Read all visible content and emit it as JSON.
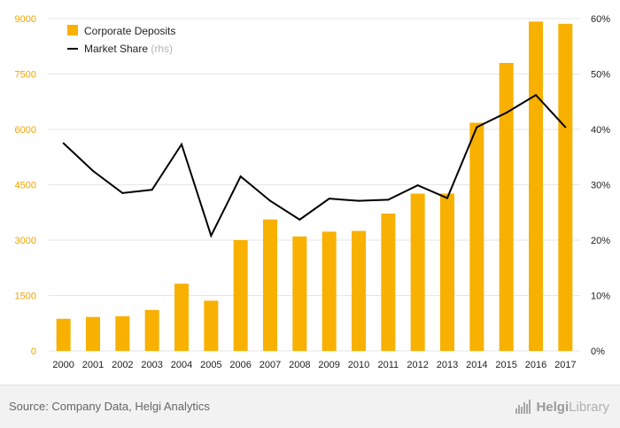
{
  "chart_data": {
    "type": "bar",
    "categories": [
      "2000",
      "2001",
      "2002",
      "2003",
      "2004",
      "2005",
      "2006",
      "2007",
      "2008",
      "2009",
      "2010",
      "2011",
      "2012",
      "2013",
      "2014",
      "2015",
      "2016",
      "2017"
    ],
    "series": [
      {
        "name": "Corporate Deposits",
        "type": "bar",
        "axis": "left",
        "values": [
          870,
          920,
          940,
          1110,
          1820,
          1360,
          3000,
          3560,
          3100,
          3230,
          3250,
          3720,
          4260,
          4260,
          6180,
          7800,
          8920,
          8860
        ]
      },
      {
        "name": "Market Share",
        "name_suffix": "(rhs)",
        "type": "line",
        "axis": "right",
        "values": [
          37.5,
          32.5,
          28.5,
          29.1,
          37.3,
          20.8,
          31.5,
          27.1,
          23.7,
          27.5,
          27.1,
          27.3,
          29.9,
          27.6,
          40.4,
          43.0,
          46.2,
          40.4
        ]
      }
    ],
    "y_left": {
      "ticks": [
        0,
        1500,
        3000,
        4500,
        6000,
        7500,
        9000
      ],
      "lim": [
        0,
        9000
      ]
    },
    "y_right": {
      "ticks": [
        "0%",
        "10%",
        "20%",
        "30%",
        "40%",
        "50%",
        "60%"
      ],
      "lim": [
        0,
        60
      ]
    },
    "grid": true,
    "legend": "top-left",
    "colors": {
      "bars": "#f8b100",
      "line": "#000000",
      "left_axis_text": "#f0a500",
      "grid": "#e6e6e6"
    }
  },
  "footer": {
    "source": "Source: Company Data, Helgi Analytics",
    "brand_a": "Helgi",
    "brand_b": "Library"
  }
}
